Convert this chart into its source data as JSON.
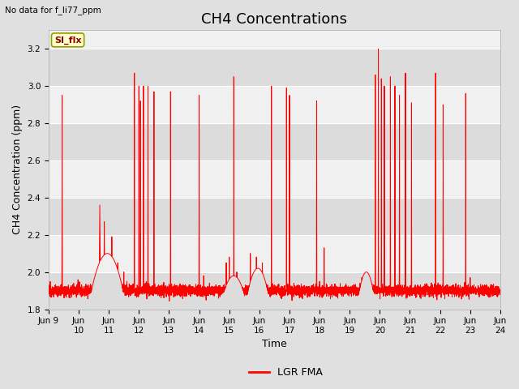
{
  "title": "CH4 Concentrations",
  "xlabel": "Time",
  "ylabel": "CH4 Concentration (ppm)",
  "no_data_text": "No data for f_li77_ppm",
  "legend_label": "LGR FMA",
  "si_flx_label": "SI_flx",
  "ylim": [
    1.8,
    3.3
  ],
  "yticks": [
    1.8,
    2.0,
    2.2,
    2.4,
    2.6,
    2.8,
    3.0,
    3.2
  ],
  "xtick_labels": [
    "Jun 9",
    "Jun\n10",
    "Jun\n11",
    "Jun\n12",
    "Jun\n13",
    "Jun\n14",
    "Jun\n15",
    "Jun\n16",
    "Jun\n17",
    "Jun\n18",
    "Jun\n19",
    "Jun\n20",
    "Jun\n21",
    "Jun\n22",
    "Jun\n23",
    "Jun\n24"
  ],
  "xtick_positions": [
    0,
    1,
    2,
    3,
    4,
    5,
    6,
    7,
    8,
    9,
    10,
    11,
    12,
    13,
    14,
    15
  ],
  "line_color": "#ff0000",
  "fig_bg_color": "#e0e0e0",
  "plot_bg_color": "#f0f0f0",
  "band_dark": "#dcdcdc",
  "band_light": "#f0f0f0",
  "title_fontsize": 13,
  "label_fontsize": 9,
  "tick_fontsize": 7.5
}
